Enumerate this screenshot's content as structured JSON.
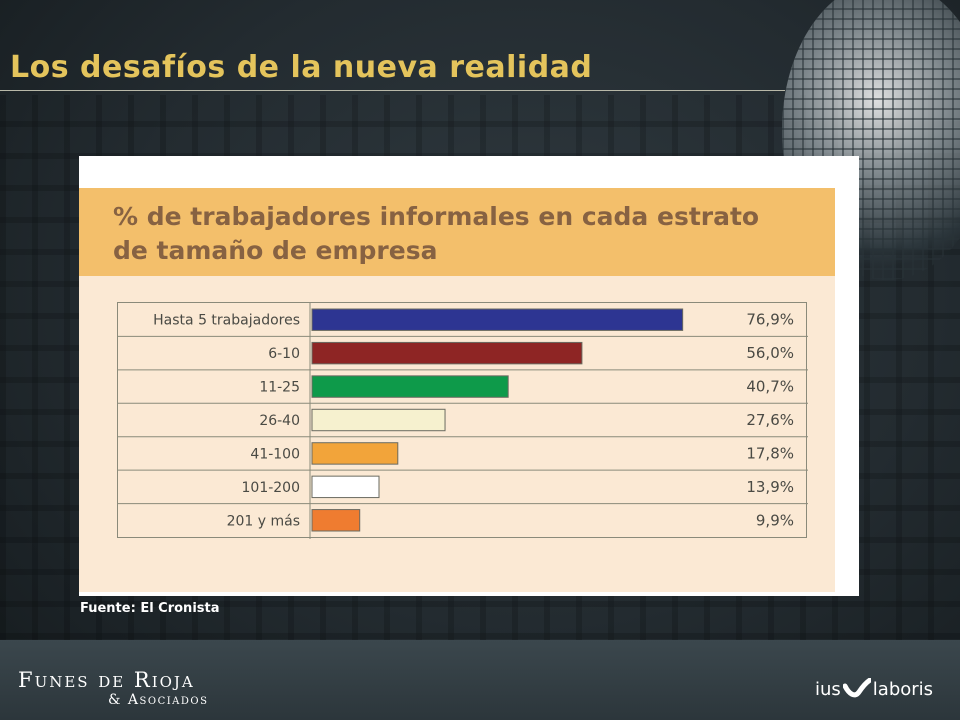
{
  "slide": {
    "title": "Los desafíos de la nueva realidad",
    "source": "Fuente: El Cronista"
  },
  "footer": {
    "brand_name": "Funes de Rioja",
    "brand_sub": "& Asociados",
    "partner_left": "ius",
    "partner_right": "laboris"
  },
  "chart_data": {
    "type": "bar",
    "orientation": "horizontal",
    "title_lines": [
      "% de trabajadores informales en cada estrato",
      "de tamaño de empresa"
    ],
    "categories": [
      "Hasta 5 trabajadores",
      "6-10",
      "11-25",
      "26-40",
      "41-100",
      "101-200",
      "201 y más"
    ],
    "values": [
      76.9,
      56.0,
      40.7,
      27.6,
      17.8,
      13.9,
      9.9
    ],
    "value_labels": [
      "76,9%",
      "56,0%",
      "40,7%",
      "27,6%",
      "17,8%",
      "13,9%",
      "9,9%"
    ],
    "bar_colors": [
      "#2d3592",
      "#8e2524",
      "#0e9a4a",
      "#f6f1cf",
      "#f2a43a",
      "#ffffff",
      "#ef7c30"
    ],
    "xlim": [
      0,
      100
    ],
    "grid": false,
    "legend": "none"
  }
}
